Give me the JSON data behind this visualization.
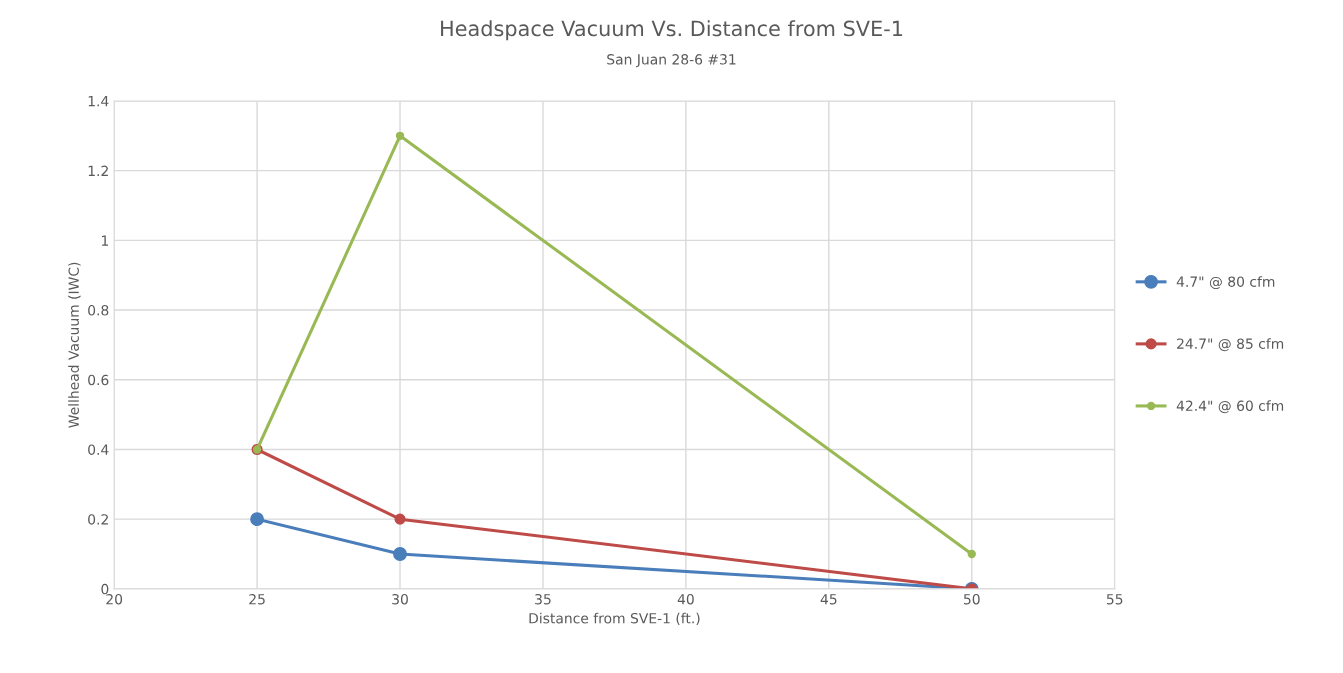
{
  "chart_data": {
    "type": "line",
    "title": "Headspace Vacuum Vs. Distance from SVE-1",
    "subtitle": "San Juan 28-6 #31",
    "xlabel": "Distance from SVE-1 (ft.)",
    "ylabel": "Wellhead Vacuum (IWC)",
    "x": [
      25,
      30,
      50
    ],
    "series": [
      {
        "name": "4.7\" @ 80 cfm",
        "color": "#4a7ebb",
        "values": [
          0.2,
          0.1,
          0
        ]
      },
      {
        "name": "24.7\" @ 85 cfm",
        "color": "#be4b48",
        "values": [
          0.4,
          0.2,
          0
        ]
      },
      {
        "name": "42.4\" @ 60 cfm",
        "color": "#98b954",
        "values": [
          0.4,
          1.3,
          0.1
        ]
      }
    ],
    "xlim": [
      20,
      55
    ],
    "xticks": [
      20,
      25,
      30,
      35,
      40,
      45,
      50,
      55
    ],
    "ylim": [
      0,
      1.4
    ],
    "yticks": [
      0,
      0.2,
      0.4,
      0.6,
      0.8,
      1,
      1.2,
      1.4
    ],
    "grid": true,
    "legend": "right",
    "marker": "circle",
    "line_style": "solid"
  }
}
